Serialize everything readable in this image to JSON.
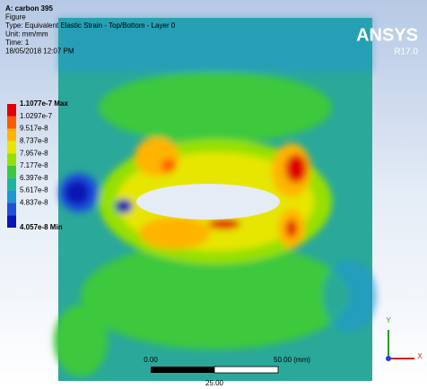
{
  "header": {
    "lines": [
      "A: carbon 395",
      "Figure",
      "Type: Equivalent Elastic Strain - Top/Bottom - Layer 0",
      "Unit: mm/mm",
      "Time: 1",
      "18/05/2018 12:07 PM"
    ]
  },
  "brand": {
    "name": "ANSYS",
    "version": "R17.0"
  },
  "legend": {
    "entries": [
      {
        "label": "1.1077e-7 Max",
        "color": "#e00000"
      },
      {
        "label": "1.0297e-7",
        "color": "#ff5a00"
      },
      {
        "label": "9.517e-8",
        "color": "#ffb400"
      },
      {
        "label": "8.737e-8",
        "color": "#e6e600"
      },
      {
        "label": "7.957e-8",
        "color": "#96e000"
      },
      {
        "label": "7.177e-8",
        "color": "#3cc83c"
      },
      {
        "label": "6.397e-8",
        "color": "#1eb4a0"
      },
      {
        "label": "5.617e-8",
        "color": "#1e96d2"
      },
      {
        "label": "4.837e-8",
        "color": "#1e50dc"
      },
      {
        "label": "4.057e-8 Min",
        "color": "#0a14b4"
      }
    ]
  },
  "scale_bar": {
    "start": "0.00",
    "end": "50.00 (mm)",
    "middle": "25.00"
  },
  "triad": {
    "y": "Y",
    "x": "X"
  }
}
